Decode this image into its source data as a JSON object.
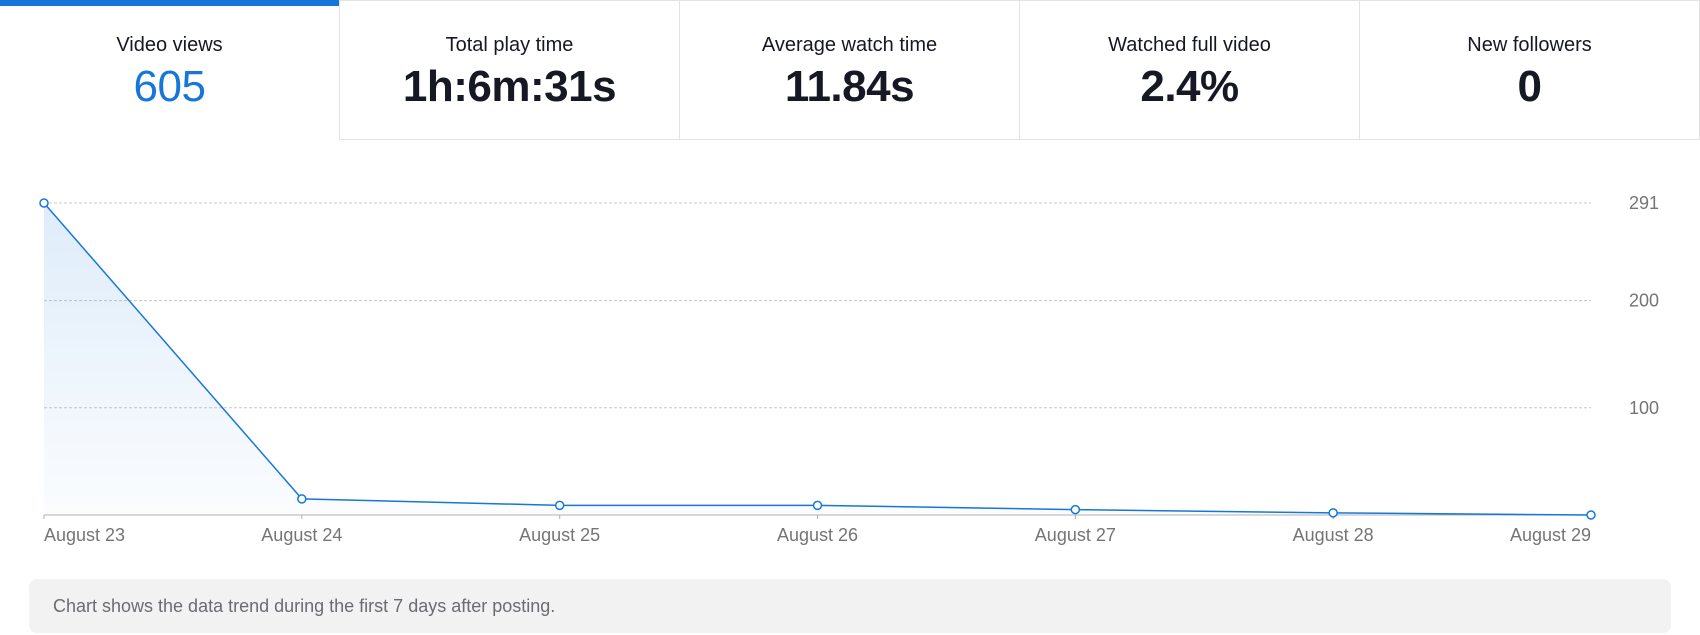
{
  "tabs": [
    {
      "label": "Video views",
      "value": "605",
      "active": true
    },
    {
      "label": "Total play time",
      "value": "1h:6m:31s",
      "active": false
    },
    {
      "label": "Average watch time",
      "value": "11.84s",
      "active": false
    },
    {
      "label": "Watched full video",
      "value": "2.4%",
      "active": false
    },
    {
      "label": "New followers",
      "value": "0",
      "active": false
    }
  ],
  "colors": {
    "accent": "#1677d9",
    "grid": "#c8c8c8",
    "axis_text": "#757575"
  },
  "chart_data": {
    "type": "area",
    "categories": [
      "August 23",
      "August 24",
      "August 25",
      "August 26",
      "August 27",
      "August 28",
      "August 29"
    ],
    "series": [
      {
        "values": [
          291,
          15,
          9,
          9,
          5,
          2,
          0
        ]
      }
    ],
    "y_ticks": [
      100,
      200,
      291
    ],
    "ylim": [
      0,
      291
    ],
    "grid": true,
    "y_axis_side": "right"
  },
  "note": "Chart shows the data trend during the first 7 days after posting."
}
